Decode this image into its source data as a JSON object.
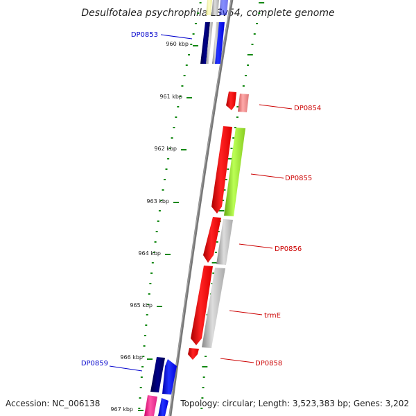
{
  "title": "Desulfotalea psychrophila LSv54, complete genome",
  "accession": "Accession: NC_006138",
  "summary": "Topology: circular; Length: 3,523,383 bp; Genes: 3,202",
  "ticks": [
    "960 kbp",
    "961 kbp",
    "962 kbp",
    "963 kbp",
    "964 kbp",
    "965 kbp",
    "966 kbp",
    "967 kbp"
  ],
  "genes": [
    {
      "label": "DP0853",
      "strand": "forward",
      "color": "#0000cc"
    },
    {
      "label": "DP0854",
      "strand": "reverse",
      "color": "#cc0000"
    },
    {
      "label": "DP0855",
      "strand": "reverse",
      "color": "#cc0000"
    },
    {
      "label": "DP0856",
      "strand": "reverse",
      "color": "#cc0000"
    },
    {
      "label": "trmE",
      "strand": "reverse",
      "color": "#cc0000"
    },
    {
      "label": "DP0858",
      "strand": "reverse",
      "color": "#cc0000"
    },
    {
      "label": "DP0859",
      "strand": "forward",
      "color": "#0000cc"
    }
  ],
  "colors": {
    "backbone": "#777777",
    "tick": "#118811",
    "forward_cds": "#0011ff",
    "reverse_cds": "#ff0000",
    "cog_dark_blue": "#000077",
    "cog_pink": "#ff3399",
    "cog_green": "#99ee33",
    "cog_gray": "#bbbbbb",
    "cog_light_red": "#ee7777"
  }
}
